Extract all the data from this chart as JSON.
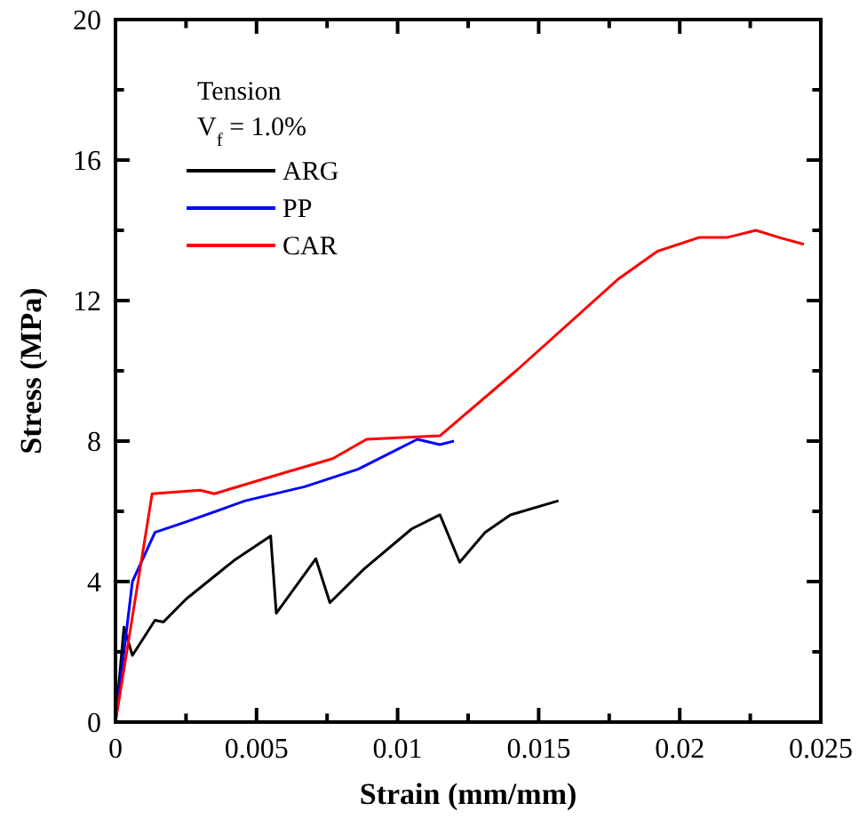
{
  "chart_data": {
    "type": "line",
    "xlabel": "Strain (mm/mm)",
    "ylabel": "Stress (MPa)",
    "annotations": [
      "Tension",
      "V$_{f}$ = 1.0%"
    ],
    "xlim": [
      0,
      0.025
    ],
    "ylim": [
      0,
      20
    ],
    "xticks": [
      0,
      {
        "value": 0.0025,
        "label": null
      },
      0.005,
      {
        "value": 0.0075,
        "label": null
      },
      0.01,
      {
        "value": 0.0125,
        "label": null
      },
      0.015,
      {
        "value": 0.0175,
        "label": null
      },
      0.02,
      {
        "value": 0.0225,
        "label": null
      },
      0.025
    ],
    "yticks": [
      0,
      {
        "value": 2,
        "label": null
      },
      4,
      {
        "value": 6,
        "label": null
      },
      8,
      {
        "value": 10,
        "label": null
      },
      12,
      {
        "value": 14,
        "label": null
      },
      16,
      {
        "value": 18,
        "label": null
      },
      20
    ],
    "grid": false,
    "legend": "top left",
    "marker": "none",
    "line_style": "solid",
    "series": [
      {
        "name": "ARG",
        "color": "#000000",
        "x": [
          0,
          0.0003,
          0.0006,
          0.0014,
          0.0017,
          0.0025,
          0.0042,
          0.0055,
          0.0057,
          0.0071,
          0.0076,
          0.0088,
          0.0105,
          0.0115,
          0.0122,
          0.0131,
          0.014,
          0.0157
        ],
        "values": [
          0,
          2.7,
          1.9,
          2.9,
          2.85,
          3.5,
          4.6,
          5.3,
          3.1,
          4.65,
          3.4,
          4.35,
          5.5,
          5.9,
          4.55,
          5.4,
          5.9,
          6.3
        ]
      },
      {
        "name": "PP",
        "color": "#0000ff",
        "x": [
          0,
          0.0006,
          0.0014,
          0.0025,
          0.0046,
          0.0067,
          0.0086,
          0.0107,
          0.0115,
          0.012
        ],
        "values": [
          0,
          4.0,
          5.4,
          5.7,
          6.3,
          6.7,
          7.2,
          8.05,
          7.9,
          8.0
        ]
      },
      {
        "name": "CAR",
        "color": "#ff0000",
        "x": [
          0,
          0.0013,
          0.003,
          0.0035,
          0.006,
          0.0077,
          0.0089,
          0.0115,
          0.0142,
          0.0178,
          0.0192,
          0.0207,
          0.0217,
          0.0227,
          0.0235,
          0.0244
        ],
        "values": [
          0,
          6.5,
          6.6,
          6.5,
          7.1,
          7.5,
          8.05,
          8.15,
          10.0,
          12.6,
          13.4,
          13.8,
          13.8,
          14.0,
          13.8,
          13.6
        ]
      }
    ]
  }
}
